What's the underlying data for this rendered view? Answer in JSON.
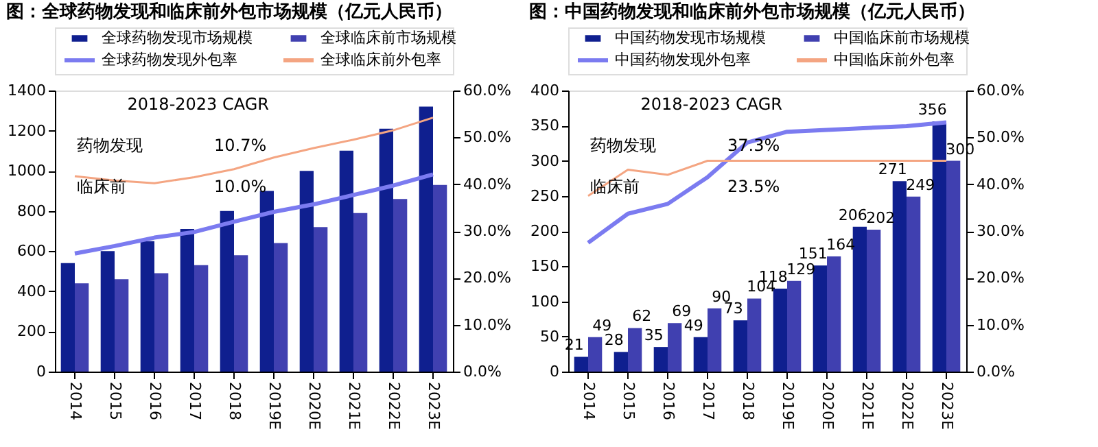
{
  "chart_data": [
    {
      "type": "bar",
      "title": "图：全球药物发现和临床前外包市场规模（亿元人民币）",
      "categories": [
        "2014",
        "2015",
        "2016",
        "2017",
        "2018",
        "2019E",
        "2020E",
        "2021E",
        "2022E",
        "2023E"
      ],
      "series": [
        {
          "name": "全球药物发现市场规模",
          "color": "#0f1f8f",
          "values": [
            540,
            600,
            650,
            710,
            800,
            900,
            1000,
            1100,
            1210,
            1320
          ]
        },
        {
          "name": "全球临床前市场规模",
          "color": "#4040b0",
          "values": [
            440,
            460,
            490,
            530,
            580,
            640,
            720,
            790,
            860,
            930
          ]
        },
        {
          "name": "全球药物发现外包率",
          "type": "line",
          "axis": "y2",
          "color": "#7b7bf0",
          "values": [
            25.2,
            26.8,
            28.6,
            29.8,
            32.0,
            34.1,
            35.7,
            37.7,
            39.7,
            42.1
          ]
        },
        {
          "name": "全球临床前外包率",
          "type": "line",
          "axis": "y2",
          "color": "#f4a582",
          "values": [
            41.7,
            40.8,
            40.2,
            41.5,
            43.2,
            45.7,
            47.7,
            49.5,
            51.5,
            54.2
          ]
        }
      ],
      "ylim": [
        0,
        1400
      ],
      "yticks": [
        0,
        200,
        400,
        600,
        800,
        1000,
        1200,
        1400
      ],
      "y2lim": [
        0,
        60
      ],
      "y2ticks": [
        {
          "value": 0,
          "label": "0.0%"
        },
        {
          "value": 10,
          "label": "10.0%"
        },
        {
          "value": 20,
          "label": "20.0%"
        },
        {
          "value": 30,
          "label": "30.0%"
        },
        {
          "value": 40,
          "label": "40.0%"
        },
        {
          "value": 50,
          "label": "50.0%"
        },
        {
          "value": 60,
          "label": "60.0%"
        }
      ],
      "annotations": [
        "2018-2023  CAGR",
        "药物发现",
        "10.7%",
        "临床前",
        "10.0%"
      ],
      "legend": "top",
      "grid": false
    },
    {
      "type": "bar",
      "title": "图：中国药物发现和临床前外包市场规模（亿元人民币）",
      "categories": [
        "2014",
        "2015",
        "2016",
        "2017",
        "2018",
        "2019E",
        "2020E",
        "2021E",
        "2022E",
        "2023E"
      ],
      "series": [
        {
          "name": "中国药物发现市场规模",
          "color": "#0f1f8f",
          "values": [
            21,
            28,
            35,
            49,
            73,
            118,
            151,
            206,
            271,
            356
          ],
          "value_labels": [
            "21",
            "28",
            "35",
            "49",
            "73",
            "118",
            "151",
            "206",
            "271",
            "356"
          ]
        },
        {
          "name": "中国临床前市场规模",
          "color": "#4040b0",
          "values": [
            49,
            62,
            69,
            90,
            104,
            129,
            164,
            202,
            249,
            300
          ],
          "value_labels": [
            "49",
            "62",
            "69",
            "90",
            "104",
            "129",
            "164",
            "202",
            "249",
            "300"
          ]
        },
        {
          "name": "中国药物发现外包率",
          "type": "line",
          "axis": "y2",
          "color": "#7b7bf0",
          "values": [
            27.5,
            33.7,
            35.8,
            41.5,
            48.9,
            51.2,
            51.6,
            52.0,
            52.4,
            53.2
          ]
        },
        {
          "name": "中国临床前外包率",
          "type": "line",
          "axis": "y2",
          "color": "#f4a582",
          "values": [
            37.5,
            43.1,
            42.0,
            45.0,
            45.0,
            45.0,
            45.0,
            45.0,
            45.0,
            45.0
          ]
        }
      ],
      "ylim": [
        0,
        400
      ],
      "yticks": [
        0,
        50,
        100,
        150,
        200,
        250,
        300,
        350,
        400
      ],
      "y2lim": [
        0,
        60
      ],
      "y2ticks": [
        {
          "value": 0,
          "label": "0.0%"
        },
        {
          "value": 10,
          "label": "10.0%"
        },
        {
          "value": 20,
          "label": "20.0%"
        },
        {
          "value": 30,
          "label": "30.0%"
        },
        {
          "value": 40,
          "label": "40.0%"
        },
        {
          "value": 50,
          "label": "50.0%"
        },
        {
          "value": 60,
          "label": "60.0%"
        }
      ],
      "annotations": [
        "2018-2023  CAGR",
        "药物发现",
        "37.3%",
        "临床前",
        "23.5%"
      ],
      "legend": "top",
      "grid": false
    }
  ]
}
